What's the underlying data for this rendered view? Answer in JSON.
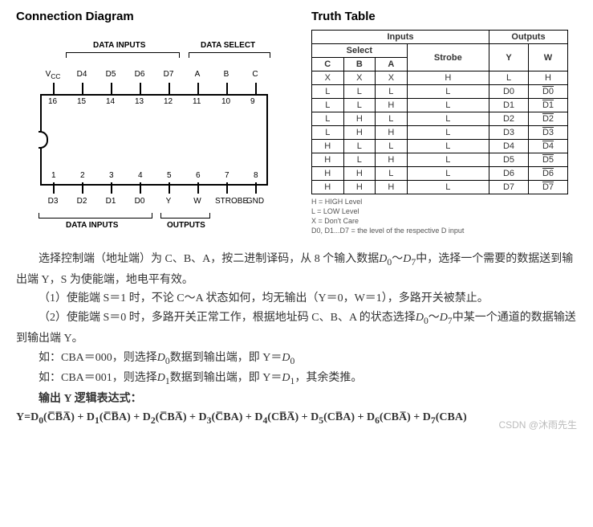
{
  "titles": {
    "conn": "Connection Diagram",
    "truth": "Truth Table"
  },
  "diagram": {
    "bracket_top_left": "DATA INPUTS",
    "bracket_top_right": "DATA SELECT",
    "bracket_bot_left": "DATA INPUTS",
    "bracket_bot_right": "OUTPUTS",
    "pins_top": [
      {
        "num": "16",
        "label": "V_CC"
      },
      {
        "num": "15",
        "label": "D4"
      },
      {
        "num": "14",
        "label": "D5"
      },
      {
        "num": "13",
        "label": "D6"
      },
      {
        "num": "12",
        "label": "D7"
      },
      {
        "num": "11",
        "label": "A"
      },
      {
        "num": "10",
        "label": "B"
      },
      {
        "num": "9",
        "label": "C"
      }
    ],
    "pins_bot": [
      {
        "num": "1",
        "label": "D3"
      },
      {
        "num": "2",
        "label": "D2"
      },
      {
        "num": "3",
        "label": "D1"
      },
      {
        "num": "4",
        "label": "D0"
      },
      {
        "num": "5",
        "label": "Y"
      },
      {
        "num": "6",
        "label": "W"
      },
      {
        "num": "7",
        "label": "STROBE"
      },
      {
        "num": "8",
        "label": "GND"
      }
    ]
  },
  "truth_table": {
    "group_inputs": "Inputs",
    "group_outputs": "Outputs",
    "group_select": "Select",
    "group_strobe": "Strobe",
    "cols": [
      "C",
      "B",
      "A",
      "S",
      "Y",
      "W"
    ],
    "rows": [
      [
        "X",
        "X",
        "X",
        "H",
        "L",
        "H",
        false
      ],
      [
        "L",
        "L",
        "L",
        "L",
        "D0",
        "D0",
        true
      ],
      [
        "L",
        "L",
        "H",
        "L",
        "D1",
        "D1",
        true
      ],
      [
        "L",
        "H",
        "L",
        "L",
        "D2",
        "D2",
        true
      ],
      [
        "L",
        "H",
        "H",
        "L",
        "D3",
        "D3",
        true
      ],
      [
        "H",
        "L",
        "L",
        "L",
        "D4",
        "D4",
        true
      ],
      [
        "H",
        "L",
        "H",
        "L",
        "D5",
        "D5",
        true
      ],
      [
        "H",
        "H",
        "L",
        "L",
        "D6",
        "D6",
        true
      ],
      [
        "H",
        "H",
        "H",
        "L",
        "D7",
        "D7",
        true
      ]
    ],
    "notes": [
      "H = HIGH Level",
      "L = LOW Level",
      "X = Don't Care",
      "D0, D1...D7 = the level of the respective D input"
    ]
  },
  "text": {
    "p1a": "选择控制端（地址端）为 C、B、A，按二进制译码，从 8 个输入数据",
    "p1b": "中，选择一个需要的数据送到输出端 Y，S 为使能端，地电平有效。",
    "p2": "（1）使能端 S＝1 时，不论 C～A 状态如何，均无输出（Y＝0，W＝1），多路开关被禁止。",
    "p3a": "（2）使能端 S＝0 时，多路开关正常工作，根据地址码 C、B、A 的状态选择",
    "p3b": "中某一个通道的数据输送到输出端 Y。",
    "p4a": "如：CBA＝000，则选择",
    "p4b": "数据到输出端，即 Y＝",
    "p5a": "如：CBA＝001，则选择",
    "p5b": "数据到输出端，即 Y＝",
    "p5c": "，其余类推。",
    "expr_title": "输出 Y 逻辑表达式：",
    "d_range_a": "D",
    "d_range_0": "0",
    "d_range_tilde": "～",
    "d_range_7": "7",
    "equation_html": "Y=D<sub>0</sub>(C̅B̅A̅) + D<sub>1</sub>(C̅B̅A) + D<sub>2</sub>(C̅BA̅) + D<sub>3</sub>(C̅BA) + D<sub>4</sub>(CB̅A̅) + D<sub>5</sub>(CB̅A) + D<sub>6</sub>(CBA̅) + D<sub>7</sub>(CBA)"
  },
  "watermark": "CSDN @沐雨先生"
}
